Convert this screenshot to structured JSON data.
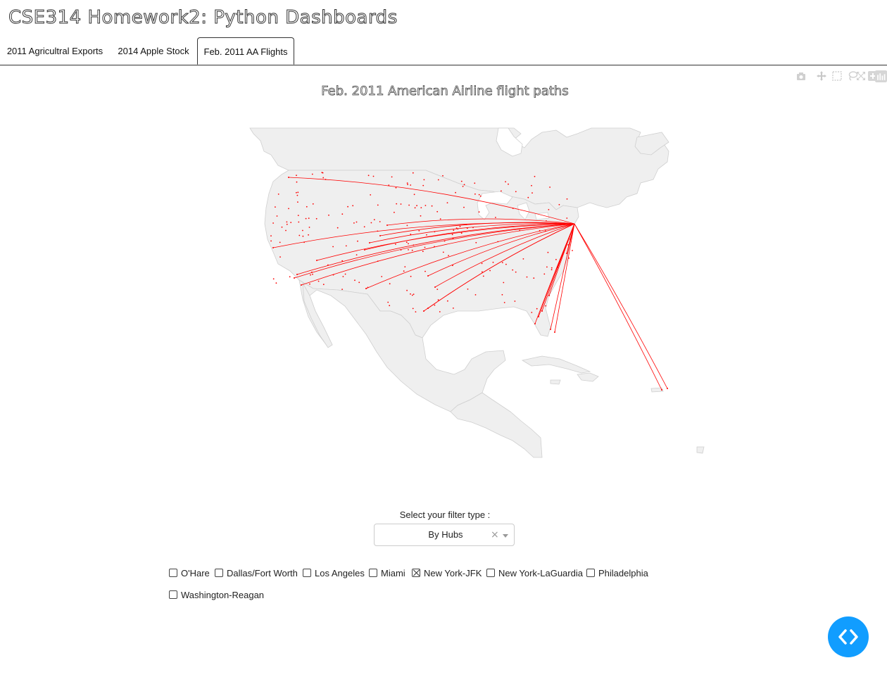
{
  "page": {
    "title": "CSE314 Homework2: Python Dashboards"
  },
  "tabs": [
    {
      "label": "2011 Agricultral Exports",
      "active": false
    },
    {
      "label": "2014 Apple Stock",
      "active": false
    },
    {
      "label": "Feb. 2011 AA Flights",
      "active": true
    }
  ],
  "modebar": {
    "icons": [
      "camera-icon",
      "pan-icon",
      "box-select-icon",
      "lasso-icon",
      "zoom-in-icon",
      "zoom-out-icon",
      "reset-icon",
      "plotly-logo-icon"
    ]
  },
  "map": {
    "title": "Feb. 2011 American Airline flight paths",
    "route_color": "#ff0000",
    "airport_color": "#ff0000",
    "land_color": "#efefef",
    "hub": "New York-JFK"
  },
  "filter": {
    "label": "Select your filter type :",
    "selected": "By Hubs",
    "clear_symbol": "×"
  },
  "hubs": [
    {
      "label": "O'Hare",
      "checked": false
    },
    {
      "label": "Dallas/Fort Worth",
      "checked": false
    },
    {
      "label": "Los Angeles",
      "checked": false
    },
    {
      "label": "Miami",
      "checked": false
    },
    {
      "label": "New York-JFK",
      "checked": true
    },
    {
      "label": "New York-LaGuardia",
      "checked": false
    },
    {
      "label": "Philadelphia",
      "checked": false
    },
    {
      "label": "Washington-Reagan",
      "checked": false
    }
  ],
  "colors": {
    "accent": "#119dff",
    "route": "#ff0000"
  }
}
